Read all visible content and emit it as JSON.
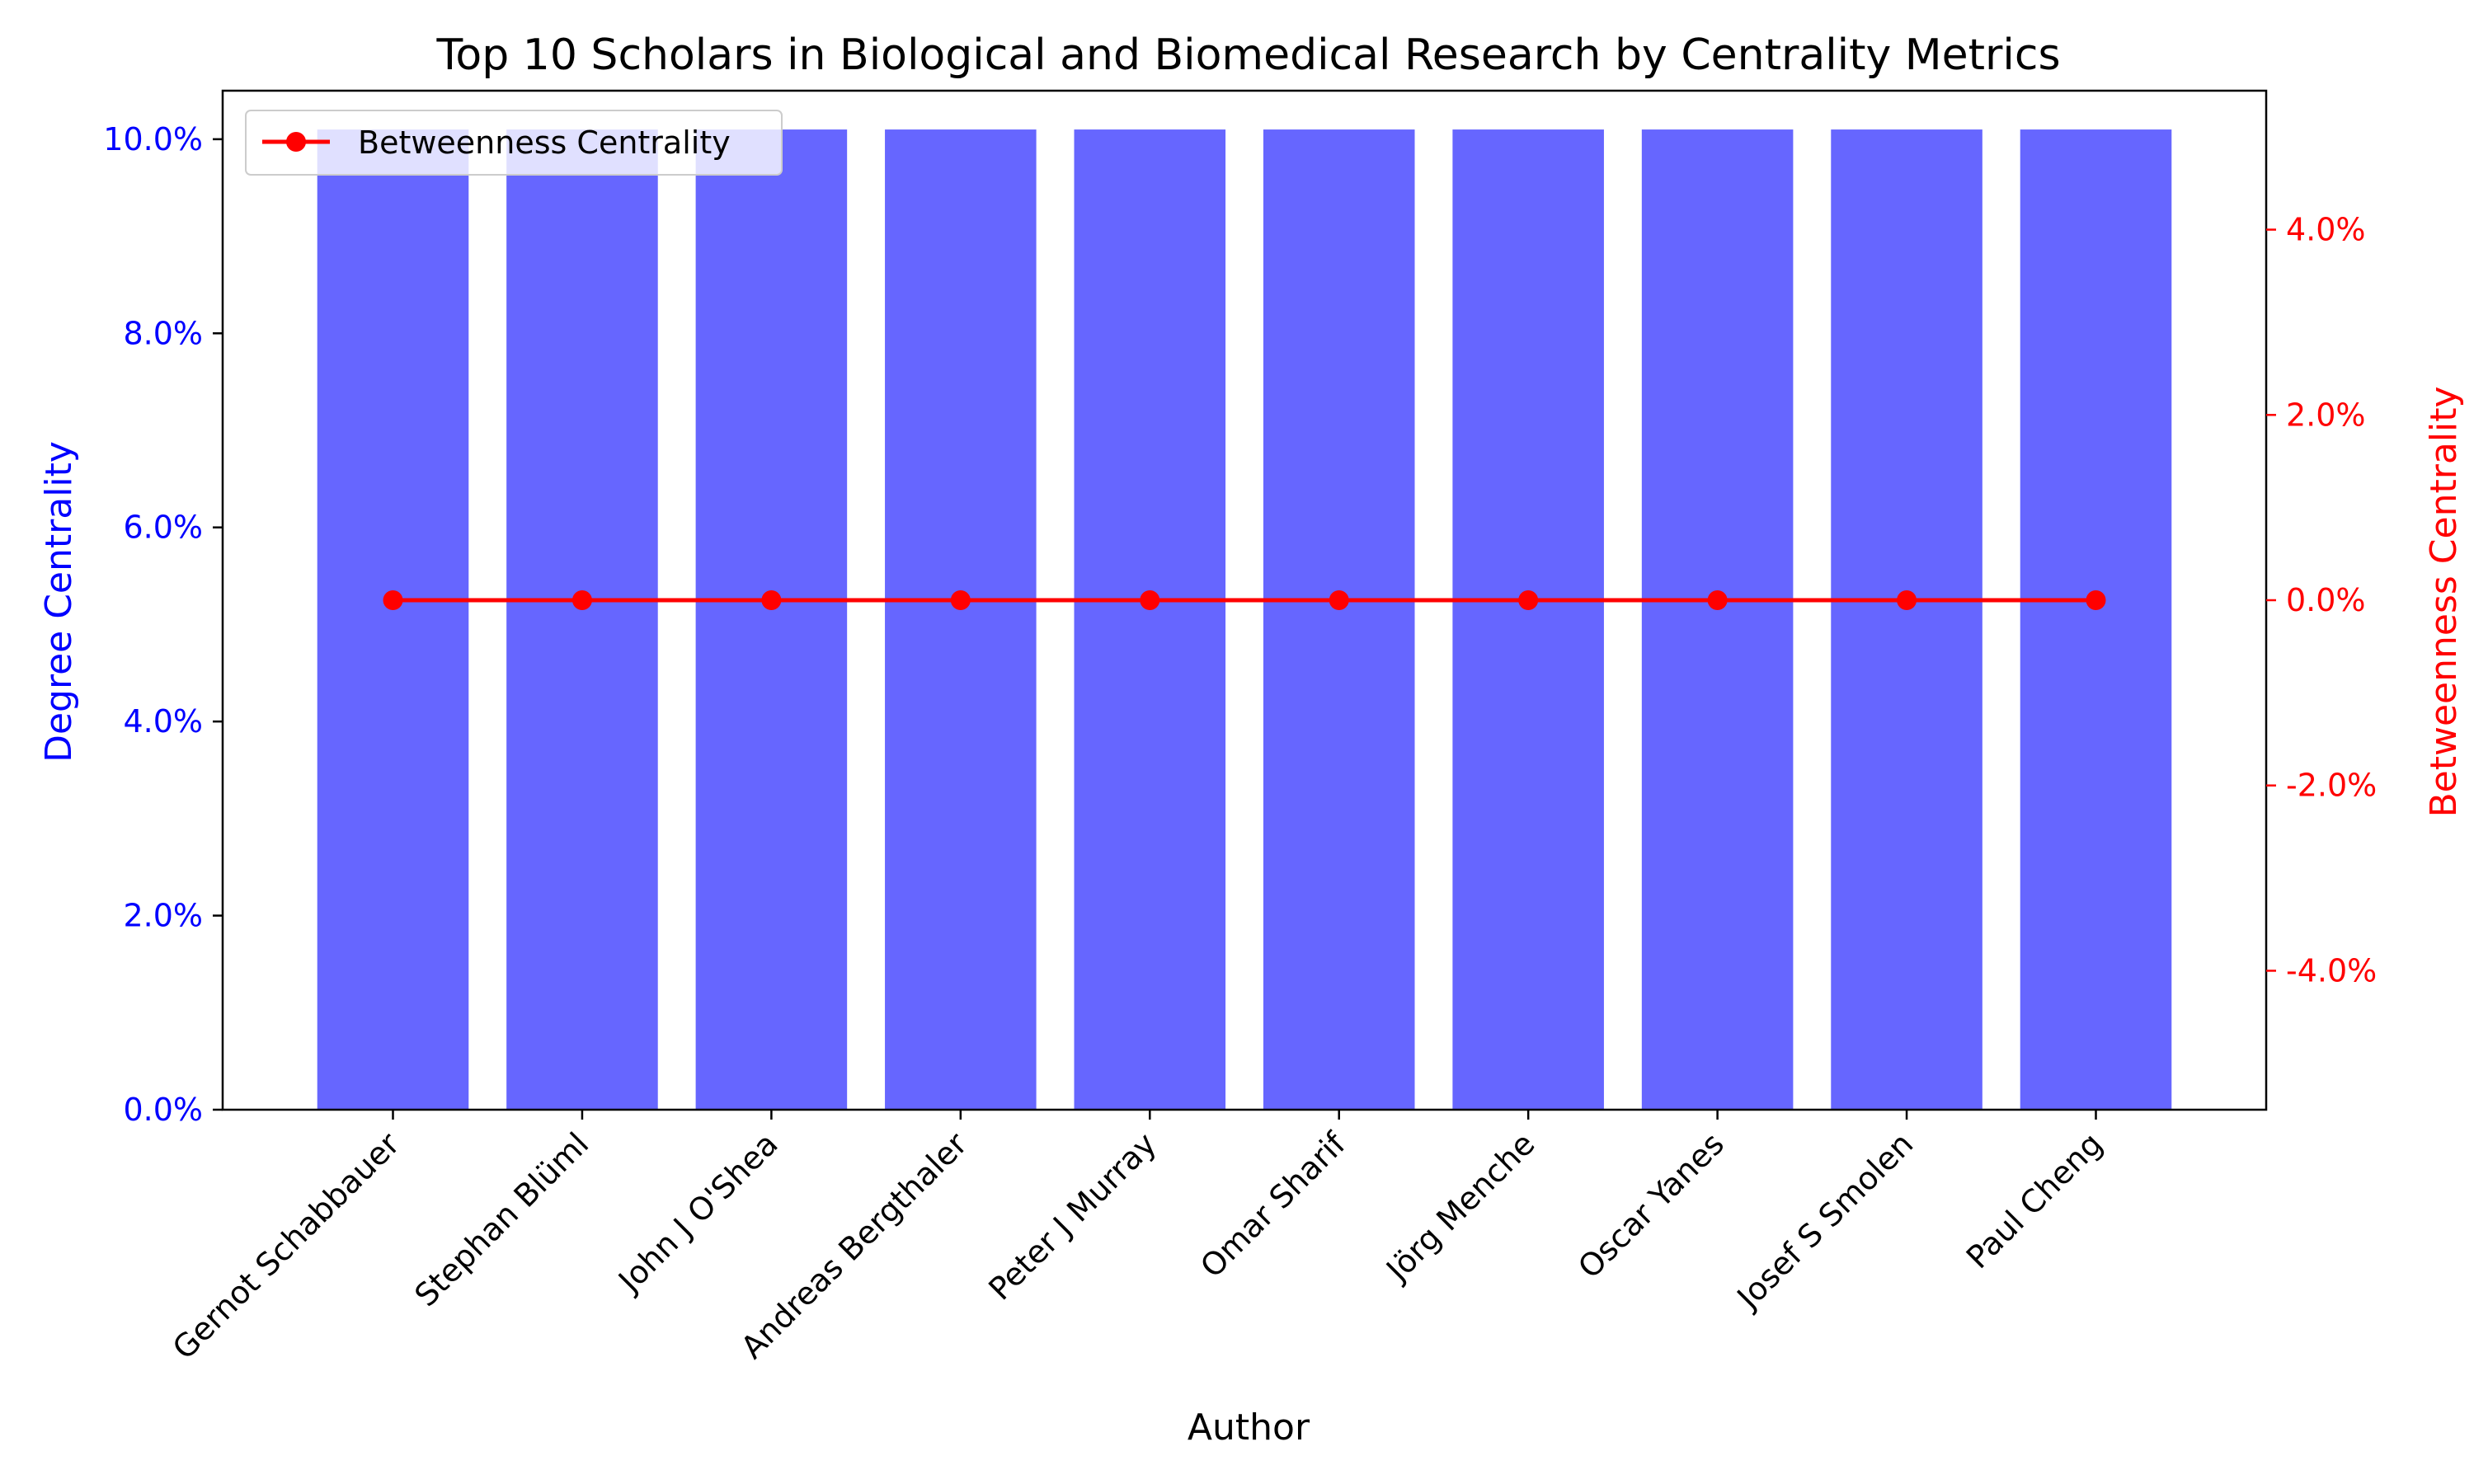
{
  "chart_data": {
    "type": "bar",
    "title": "Top 10 Scholars in Biological and Biomedical Research by Centrality Metrics",
    "xlabel": "Author",
    "ylabel": "Degree Centrality",
    "y2label": "Betweenness Centrality",
    "categories": [
      "Gernot Schabbauer",
      "Stephan Blüml",
      "John J O'Shea",
      "Andreas Bergthaler",
      "Peter J Murray",
      "Omar Sharif",
      "Jörg Menche",
      "Oscar Yanes",
      "Josef S Smolen",
      "Paul Cheng"
    ],
    "series": [
      {
        "type": "bar",
        "axis": "left",
        "color": "#6666ff",
        "values": [
          10.1,
          10.1,
          10.1,
          10.1,
          10.1,
          10.1,
          10.1,
          10.1,
          10.1,
          10.1
        ]
      },
      {
        "type": "line",
        "axis": "right",
        "name": "Betweenness Centrality",
        "color": "#ff0000",
        "values": [
          0,
          0,
          0,
          0,
          0,
          0,
          0,
          0,
          0,
          0
        ]
      }
    ],
    "ylim": [
      0,
      10.5
    ],
    "y2lim": [
      -5.5,
      5.5
    ],
    "yticks": [
      0,
      2,
      4,
      6,
      8,
      10
    ],
    "y2ticks": [
      -4,
      -2,
      0,
      2,
      4
    ],
    "ytick_labels": [
      "0.0%",
      "2.0%",
      "4.0%",
      "6.0%",
      "8.0%",
      "10.0%"
    ],
    "y2tick_labels": [
      "-4.0%",
      "-2.0%",
      "0.0%",
      "2.0%",
      "4.0%"
    ],
    "left_axis_color": "#0000ff",
    "right_axis_color": "#ff0000",
    "legend": {
      "position": "top-left",
      "entries": [
        "Betweenness Centrality"
      ]
    },
    "grid": false
  }
}
